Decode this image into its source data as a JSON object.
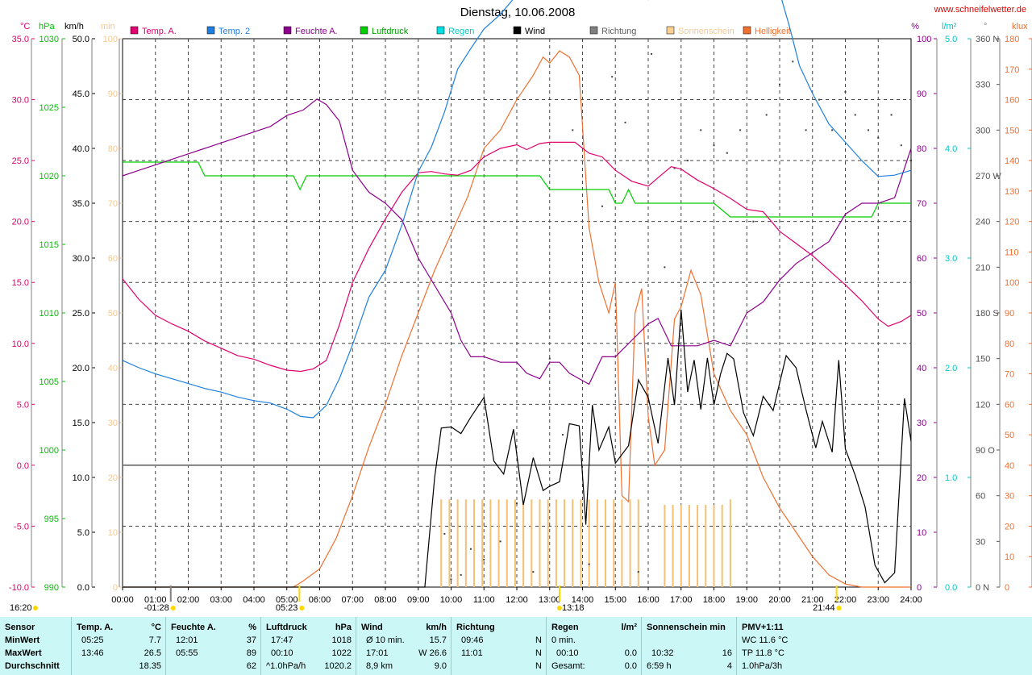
{
  "header": {
    "title": "Dienstag, 10.06.2008",
    "website": "www.schneifelwetter.de"
  },
  "legend": [
    {
      "label": "Temp. A.",
      "color": "#e0006e"
    },
    {
      "label": "Temp. 2",
      "color": "#1e7fe0"
    },
    {
      "label": "Feuchte A.",
      "color": "#8c008c"
    },
    {
      "label": "Luftdruck",
      "color": "#00d000"
    },
    {
      "label": "Regen",
      "color": "#00e0e0"
    },
    {
      "label": "Wind",
      "color": "#000000"
    },
    {
      "label": "Richtung",
      "color": "#808080"
    },
    {
      "label": "Sonnenschein",
      "color": "#ffd090"
    },
    {
      "label": "Helligkeit",
      "color": "#f07030"
    }
  ],
  "axes": {
    "temp": {
      "unit": "°C",
      "color": "#e0006e",
      "ticks": [
        "35.0",
        "30.0",
        "25.0",
        "20.0",
        "15.0",
        "10.0",
        "5.0",
        "0.0",
        "-5.0",
        "-10.0"
      ]
    },
    "pressure": {
      "unit": "hPa",
      "color": "#00c000",
      "ticks": [
        "1030",
        "1025",
        "1020",
        "1015",
        "1010",
        "1005",
        "1000",
        "995",
        "990"
      ]
    },
    "wind": {
      "unit": "km/h",
      "color": "#000000",
      "ticks": [
        "50.0",
        "45.0",
        "40.0",
        "35.0",
        "30.0",
        "25.0",
        "20.0",
        "15.0",
        "10.0",
        "5.0",
        "0.0"
      ]
    },
    "minutes": {
      "unit": "min",
      "color": "#f5c890",
      "ticks": [
        "100",
        "90",
        "80",
        "70",
        "60",
        "50",
        "40",
        "30",
        "20",
        "10",
        "0"
      ]
    },
    "humidity": {
      "unit": "%",
      "color": "#8c008c",
      "ticks": [
        "100",
        "90",
        "80",
        "70",
        "60",
        "50",
        "40",
        "30",
        "20",
        "10",
        "0"
      ]
    },
    "rain": {
      "unit": "l/m²",
      "color": "#00c8c8",
      "ticks": [
        "5.0",
        "4.0",
        "3.0",
        "2.0",
        "1.0",
        "0.0"
      ]
    },
    "direction": {
      "unit": "°",
      "color": "#808080",
      "ticks": [
        "360 N",
        "330",
        "300",
        "270 W",
        "240",
        "210",
        "180 S",
        "150",
        "120",
        "90 O",
        "60",
        "30",
        "0 N"
      ]
    },
    "light": {
      "unit": "klux",
      "color": "#f07030",
      "ticks": [
        "180",
        "170",
        "160",
        "150",
        "140",
        "130",
        "120",
        "110",
        "100",
        "90",
        "80",
        "70",
        "60",
        "50",
        "40",
        "30",
        "20",
        "10",
        "0"
      ]
    },
    "time": {
      "ticks": [
        "00:00",
        "01:00",
        "02:00",
        "03:00",
        "04:00",
        "05:00",
        "06:00",
        "07:00",
        "08:00",
        "09:00",
        "10:00",
        "11:00",
        "12:00",
        "13:00",
        "14:00",
        "15:00",
        "16:00",
        "17:00",
        "18:00",
        "19:00",
        "20:00",
        "21:00",
        "22:00",
        "23:00",
        "24:00"
      ]
    }
  },
  "time_markers": {
    "moon_rise": "16:20",
    "moon_set": "01:28",
    "sunrise": "05:23",
    "noon": "13:18",
    "sunset": "21:44"
  },
  "chart_data": {
    "type": "line",
    "title": "Dienstag, 10.06.2008",
    "x_unit": "hour",
    "xlim": [
      0,
      24
    ],
    "series": [
      {
        "name": "Temp. A.",
        "axis": "°C",
        "ylim": [
          -10,
          35
        ],
        "x": [
          0,
          0.5,
          1,
          1.5,
          2,
          2.5,
          3,
          3.5,
          4,
          4.5,
          5,
          5.42,
          5.8,
          6.2,
          6.6,
          7,
          7.5,
          8,
          8.5,
          9,
          9.4,
          9.8,
          10.2,
          10.6,
          11,
          11.5,
          12,
          12.3,
          12.7,
          13,
          13.3,
          13.77,
          14.2,
          14.6,
          15,
          15.5,
          16,
          16.3,
          16.7,
          17,
          17.5,
          18,
          18.5,
          19,
          19.5,
          20,
          20.5,
          21,
          21.5,
          22,
          22.5,
          23,
          23.3,
          23.7,
          24
        ],
        "y": [
          15.3,
          13.6,
          12.3,
          11.6,
          11.0,
          10.2,
          9.6,
          9.0,
          8.7,
          8.2,
          7.8,
          7.7,
          7.9,
          8.6,
          11.5,
          15.0,
          17.8,
          20.2,
          22.4,
          24.0,
          24.1,
          23.9,
          23.8,
          24.2,
          25.3,
          26.0,
          26.3,
          25.9,
          26.4,
          26.5,
          26.5,
          26.5,
          25.6,
          25.3,
          24.2,
          23.3,
          22.9,
          23.6,
          24.5,
          24.3,
          23.4,
          22.7,
          21.9,
          21.0,
          20.8,
          19.2,
          18.2,
          17.2,
          16.0,
          14.8,
          13.5,
          12.0,
          11.4,
          11.8,
          12.3
        ]
      },
      {
        "name": "Temp. 2",
        "axis": "°C",
        "ylim": [
          -10,
          35
        ],
        "x": [
          0,
          0.5,
          1,
          1.5,
          2,
          2.5,
          3,
          3.5,
          4,
          4.5,
          5,
          5.42,
          5.8,
          6.2,
          6.6,
          7,
          7.5,
          8,
          8.5,
          9,
          9.4,
          9.8,
          10.2,
          10.6,
          11,
          11.5,
          12,
          12.3,
          12.7,
          13,
          13.3,
          13.6,
          13.77,
          14,
          14.2,
          14.4,
          14.6,
          14.8,
          15,
          15.3,
          15.6,
          16,
          16.4,
          16.8,
          17,
          17.3,
          17.5,
          17.8,
          18,
          18.3,
          18.6,
          19,
          19.3,
          19.6,
          20,
          20.3,
          20.6,
          21,
          21.5,
          22,
          22.5,
          23,
          23.5,
          24
        ],
        "y": [
          8.6,
          8.0,
          7.5,
          7.1,
          6.7,
          6.3,
          6.0,
          5.6,
          5.3,
          5.1,
          4.6,
          4.0,
          3.9,
          4.9,
          7.1,
          9.9,
          13.8,
          16.0,
          19.7,
          24.1,
          26.1,
          29.0,
          32.5,
          34.2,
          35.8,
          37.0,
          38.6,
          38.9,
          39.2,
          40.2,
          41.2,
          42.3,
          43.5,
          44.1,
          43.0,
          44.2,
          44.4,
          41.6,
          40.3,
          40.1,
          39.6,
          38.2,
          39.1,
          41.0,
          43.5,
          44.6,
          45.2,
          45.5,
          44.8,
          45.7,
          45.0,
          44.2,
          42.0,
          40.4,
          38.8,
          36.0,
          32.8,
          30.5,
          28.0,
          26.5,
          25.0,
          23.7,
          23.8,
          24.2
        ]
      },
      {
        "name": "Feuchte A.",
        "axis": "%",
        "ylim": [
          0,
          100
        ],
        "x": [
          0,
          0.5,
          1,
          1.5,
          2,
          2.5,
          3,
          3.5,
          4,
          4.5,
          5,
          5.5,
          5.92,
          6.2,
          6.6,
          7,
          7.5,
          8,
          8.5,
          9,
          9.5,
          10,
          10.3,
          10.6,
          11,
          11.5,
          12,
          12.3,
          12.7,
          13,
          13.3,
          13.6,
          13.9,
          14.2,
          14.6,
          15,
          15.5,
          16,
          16.3,
          16.7,
          17,
          17.5,
          18,
          18.5,
          19,
          19.5,
          20,
          20.5,
          21,
          21.5,
          22,
          22.5,
          23,
          23.5,
          24
        ],
        "y": [
          75,
          76,
          77,
          78,
          79,
          80,
          81,
          82,
          83,
          84,
          86,
          87,
          89,
          88,
          85,
          76,
          72,
          70,
          67,
          60,
          55,
          50,
          45,
          42,
          42,
          41,
          41,
          39,
          38,
          41,
          41,
          39,
          38,
          37,
          42,
          42,
          45,
          48,
          49,
          44,
          44,
          44,
          45,
          44,
          50,
          52,
          56,
          59,
          61,
          63,
          68,
          70,
          70,
          71,
          80
        ]
      },
      {
        "name": "Luftdruck",
        "axis": "hPa",
        "ylim": [
          990,
          1030
        ],
        "x": [
          0,
          1,
          2,
          2.3,
          2.5,
          3,
          4,
          5,
          5.2,
          5.4,
          5.6,
          5.8,
          6,
          7,
          8,
          9,
          10,
          11,
          12,
          12.5,
          12.7,
          13,
          13.5,
          14,
          14.5,
          14.8,
          15,
          15.2,
          15.4,
          15.6,
          16,
          17,
          17.5,
          18,
          18.5,
          19,
          20,
          21,
          21.5,
          22,
          22.5,
          22.8,
          23,
          24
        ],
        "y": [
          1021,
          1021,
          1021,
          1021,
          1020,
          1020,
          1020,
          1020,
          1020,
          1019,
          1020,
          1020,
          1020,
          1020,
          1020,
          1020,
          1020,
          1020,
          1020,
          1020,
          1020,
          1019,
          1019,
          1019,
          1019,
          1019,
          1018,
          1018,
          1019,
          1018,
          1018,
          1018,
          1018,
          1018,
          1017,
          1017,
          1017,
          1017,
          1017,
          1017,
          1017,
          1017,
          1018,
          1018
        ]
      },
      {
        "name": "Wind",
        "axis": "km/h",
        "ylim": [
          0,
          50
        ],
        "x": [
          0,
          9.2,
          9.5,
          9.7,
          10,
          10.3,
          10.6,
          11,
          11.3,
          11.6,
          11.9,
          12.2,
          12.5,
          12.8,
          13,
          13.3,
          13.6,
          13.9,
          14.1,
          14.3,
          14.5,
          14.8,
          15,
          15.4,
          15.7,
          16,
          16.3,
          16.6,
          16.8,
          17,
          17.2,
          17.4,
          17.6,
          17.8,
          18,
          18.2,
          18.4,
          18.6,
          18.9,
          19.2,
          19.5,
          19.8,
          20.2,
          20.5,
          20.8,
          21.1,
          21.3,
          21.6,
          21.8,
          22,
          22.3,
          22.6,
          22.9,
          23.2,
          23.5,
          23.8,
          24
        ],
        "y": [
          0,
          0,
          10,
          14.5,
          14.6,
          14.0,
          15.5,
          17.3,
          11.5,
          10.3,
          14.4,
          7.5,
          11.8,
          8.8,
          9.2,
          9.6,
          14.9,
          14.7,
          5.7,
          16.6,
          12.5,
          14.6,
          11.3,
          12.9,
          18.9,
          17.3,
          13.1,
          20.9,
          16.6,
          25.3,
          17.8,
          20.7,
          16.2,
          20.9,
          16.6,
          19.4,
          21.3,
          20.8,
          15.9,
          13.8,
          17.4,
          16.1,
          21.1,
          20.0,
          16.2,
          12.7,
          15.1,
          12.3,
          20.7,
          12.6,
          10.2,
          7.3,
          2.0,
          0.4,
          1.3,
          17.2,
          13.3
        ]
      },
      {
        "name": "Helligkeit",
        "axis": "klux",
        "ylim": [
          0,
          180
        ],
        "x": [
          0,
          5.2,
          5.5,
          6,
          6.5,
          7,
          7.5,
          8,
          8.5,
          9,
          9.5,
          10,
          10.5,
          11,
          11.5,
          12,
          12.5,
          12.8,
          13,
          13.3,
          13.6,
          13.9,
          14.2,
          14.5,
          14.8,
          15,
          15.2,
          15.4,
          15.6,
          15.8,
          16,
          16.2,
          16.5,
          16.8,
          17,
          17.3,
          17.6,
          18,
          18.5,
          19,
          19.5,
          20,
          20.5,
          21,
          21.5,
          22,
          22.5,
          24
        ],
        "y": [
          0,
          0,
          2,
          6,
          16,
          30,
          46,
          60,
          76,
          90,
          104,
          116,
          128,
          144,
          150,
          160,
          168,
          174,
          172,
          176,
          174,
          168,
          118,
          100,
          90,
          100,
          30,
          28,
          90,
          98,
          56,
          40,
          45,
          88,
          92,
          104,
          96,
          70,
          58,
          50,
          36,
          26,
          18,
          10,
          4,
          1,
          0,
          0
        ]
      }
    ],
    "sunshine": {
      "name": "Sonnenschein",
      "axis": "min",
      "ylim": [
        0,
        100
      ],
      "x": [
        9.7,
        9.95,
        10.2,
        10.45,
        10.7,
        10.95,
        11.2,
        11.45,
        11.7,
        11.95,
        12.2,
        12.45,
        12.7,
        12.95,
        13.2,
        13.45,
        13.7,
        13.95,
        14.2,
        14.45,
        14.7,
        14.95,
        15.2,
        15.45,
        15.7,
        16.5,
        16.75,
        17.0,
        17.25,
        17.5,
        17.75,
        18.0,
        18.25,
        18.5
      ],
      "values": [
        16,
        16,
        16,
        16,
        16,
        16,
        16,
        16,
        16,
        16,
        16,
        16,
        16,
        16,
        16,
        16,
        16,
        16,
        16,
        16,
        16,
        16,
        16,
        16,
        16,
        15,
        15,
        15,
        15,
        15,
        15,
        15,
        15,
        16
      ]
    },
    "direction": {
      "name": "Richtung",
      "axis": "°",
      "ylim": [
        0,
        360
      ],
      "x": [
        9.8,
        10,
        10.3,
        10.6,
        11,
        11.5,
        12,
        12.5,
        13,
        13.4,
        13.7,
        14.2,
        14.6,
        14.9,
        15.3,
        15.7,
        16.1,
        16.5,
        16.8,
        17.2,
        17.6,
        18,
        18.4,
        18.8,
        19.2,
        19.6,
        20,
        20.4,
        20.8,
        21.2,
        21.6,
        22,
        22.3,
        22.7,
        23,
        23.4,
        23.7,
        24
      ],
      "y": [
        35,
        5,
        8,
        25,
        18,
        30,
        55,
        10,
        150,
        100,
        300,
        15,
        250,
        335,
        305,
        10,
        350,
        210,
        275,
        280,
        300,
        290,
        285,
        300,
        240,
        310,
        330,
        345,
        300,
        320,
        300,
        325,
        310,
        300,
        295,
        310,
        290,
        280
      ]
    }
  },
  "stats": {
    "row_labels": [
      "Sensor",
      "MinWert",
      "MaxWert",
      "Durchschnitt"
    ],
    "temp": {
      "head": "Temp. A.",
      "unit": "°C",
      "min_time": "05:25",
      "min_val": "7.7",
      "max_time": "13:46",
      "max_val": "26.5",
      "avg": "18.35"
    },
    "humidity": {
      "head": "Feuchte A.",
      "unit": "%",
      "min_time": "12:01",
      "min_val": "37",
      "max_time": "05:55",
      "max_val": "89",
      "avg": "62"
    },
    "pressure": {
      "head": "Luftdruck",
      "unit": "hPa",
      "min_time": "17:47",
      "min_val": "1018",
      "max_time": "00:10",
      "max_val": "1022",
      "avg_label": "^1.0hPa/h",
      "avg": "1020.2"
    },
    "wind": {
      "head": "Wind",
      "unit": "km/h",
      "min_time": "Ø 10 min.",
      "min_val": "15.7",
      "max_time": "17:01",
      "max_val": "W 26.6",
      "avg_label": "8,9 km",
      "avg": "9.0"
    },
    "direction": {
      "head": "Richtung",
      "min_time": "09:46",
      "min_val": "N",
      "max_time": "11:01",
      "max_val": "N",
      "avg_val": "N"
    },
    "rain": {
      "head": "Regen",
      "unit": "l/m²",
      "min_label": "0 min.",
      "max_time": "00:10",
      "max_val": "0.0",
      "avg_label": "Gesamt:",
      "avg": "0.0"
    },
    "sunshine": {
      "head": "Sonnenschein min",
      "max_time": "10:32",
      "max_val": "16",
      "avg_label": "6:59 h",
      "avg": "4"
    },
    "pmv": {
      "head": "PMV+1:11",
      "line1": "WC 11.6 °C",
      "line2": "TP 11.8 °C",
      "line3": "1.0hPa/3h"
    }
  }
}
